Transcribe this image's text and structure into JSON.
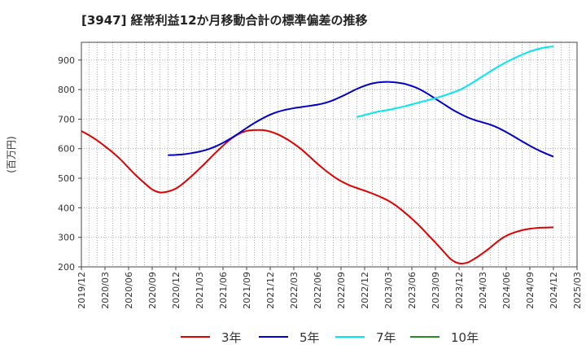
{
  "title": "[3947]  経常利益12か月移動合計の標準偏差の推移",
  "chart_data": {
    "type": "line",
    "ylabel": "(百万円)",
    "ylim": [
      200,
      960
    ],
    "yticks": [
      200,
      300,
      400,
      500,
      600,
      700,
      800,
      900
    ],
    "x_tick_labels": [
      "2019/12",
      "2020/03",
      "2020/06",
      "2020/09",
      "2020/12",
      "2021/03",
      "2021/06",
      "2021/09",
      "2021/12",
      "2022/03",
      "2022/06",
      "2022/09",
      "2022/12",
      "2023/03",
      "2023/06",
      "2023/09",
      "2023/12",
      "2024/03",
      "2024/06",
      "2024/09",
      "2024/12",
      "2025/03"
    ],
    "grid": true,
    "legend_position": "bottom",
    "series": [
      {
        "name": "3年",
        "color": "#e00000",
        "x": [
          "2019/12",
          "2020/01",
          "2020/02",
          "2020/03",
          "2020/04",
          "2020/05",
          "2020/06",
          "2020/07",
          "2020/08",
          "2020/09",
          "2020/10",
          "2020/11",
          "2020/12",
          "2021/01",
          "2021/02",
          "2021/03",
          "2021/04",
          "2021/05",
          "2021/06",
          "2021/07",
          "2021/08",
          "2021/09",
          "2021/10",
          "2021/11",
          "2021/12",
          "2022/01",
          "2022/02",
          "2022/03",
          "2022/04",
          "2022/05",
          "2022/06",
          "2022/07",
          "2022/08",
          "2022/09",
          "2022/10",
          "2022/11",
          "2022/12",
          "2023/01",
          "2023/02",
          "2023/03",
          "2023/04",
          "2023/05",
          "2023/06",
          "2023/07",
          "2023/08",
          "2023/09",
          "2023/10",
          "2023/11",
          "2023/12",
          "2024/01",
          "2024/02",
          "2024/03",
          "2024/04",
          "2024/05",
          "2024/06",
          "2024/07",
          "2024/08",
          "2024/09",
          "2024/10",
          "2024/11",
          "2024/12"
        ],
        "y": [
          660,
          645,
          628,
          608,
          587,
          563,
          535,
          508,
          484,
          462,
          452,
          455,
          465,
          484,
          507,
          532,
          558,
          585,
          610,
          633,
          650,
          660,
          663,
          663,
          658,
          648,
          634,
          617,
          597,
          573,
          549,
          527,
          507,
          490,
          477,
          467,
          458,
          448,
          437,
          424,
          407,
          386,
          363,
          338,
          310,
          282,
          253,
          225,
          212,
          214,
          228,
          246,
          266,
          288,
          305,
          316,
          324,
          329,
          332,
          333,
          334
        ]
      },
      {
        "name": "5年",
        "color": "#0000cc",
        "x": [
          "2020/11",
          "2020/12",
          "2021/01",
          "2021/02",
          "2021/03",
          "2021/04",
          "2021/05",
          "2021/06",
          "2021/07",
          "2021/08",
          "2021/09",
          "2021/10",
          "2021/11",
          "2021/12",
          "2022/01",
          "2022/02",
          "2022/03",
          "2022/04",
          "2022/05",
          "2022/06",
          "2022/07",
          "2022/08",
          "2022/09",
          "2022/10",
          "2022/11",
          "2022/12",
          "2023/01",
          "2023/02",
          "2023/03",
          "2023/04",
          "2023/05",
          "2023/06",
          "2023/07",
          "2023/08",
          "2023/09",
          "2023/10",
          "2023/11",
          "2023/12",
          "2024/01",
          "2024/02",
          "2024/03",
          "2024/04",
          "2024/05",
          "2024/06",
          "2024/07",
          "2024/08",
          "2024/09",
          "2024/10",
          "2024/11",
          "2024/12"
        ],
        "y": [
          578,
          579,
          581,
          585,
          590,
          597,
          607,
          620,
          635,
          652,
          670,
          687,
          702,
          715,
          725,
          732,
          737,
          741,
          745,
          749,
          755,
          764,
          776,
          789,
          802,
          813,
          821,
          825,
          826,
          824,
          820,
          812,
          801,
          786,
          769,
          752,
          735,
          720,
          707,
          697,
          689,
          681,
          670,
          656,
          641,
          625,
          610,
          596,
          584,
          573
        ]
      },
      {
        "name": "7年",
        "color": "#00e8f0",
        "x": [
          "2022/11",
          "2022/12",
          "2023/01",
          "2023/02",
          "2023/03",
          "2023/04",
          "2023/05",
          "2023/06",
          "2023/07",
          "2023/08",
          "2023/09",
          "2023/10",
          "2023/11",
          "2023/12",
          "2024/01",
          "2024/02",
          "2024/03",
          "2024/04",
          "2024/05",
          "2024/06",
          "2024/07",
          "2024/08",
          "2024/09",
          "2024/10",
          "2024/11",
          "2024/12"
        ],
        "y": [
          707,
          714,
          721,
          727,
          731,
          737,
          743,
          750,
          757,
          764,
          771,
          779,
          788,
          798,
          812,
          828,
          845,
          862,
          878,
          893,
          906,
          918,
          929,
          937,
          943,
          946
        ]
      },
      {
        "name": "10年",
        "color": "#228b22",
        "x": [],
        "y": []
      }
    ]
  }
}
